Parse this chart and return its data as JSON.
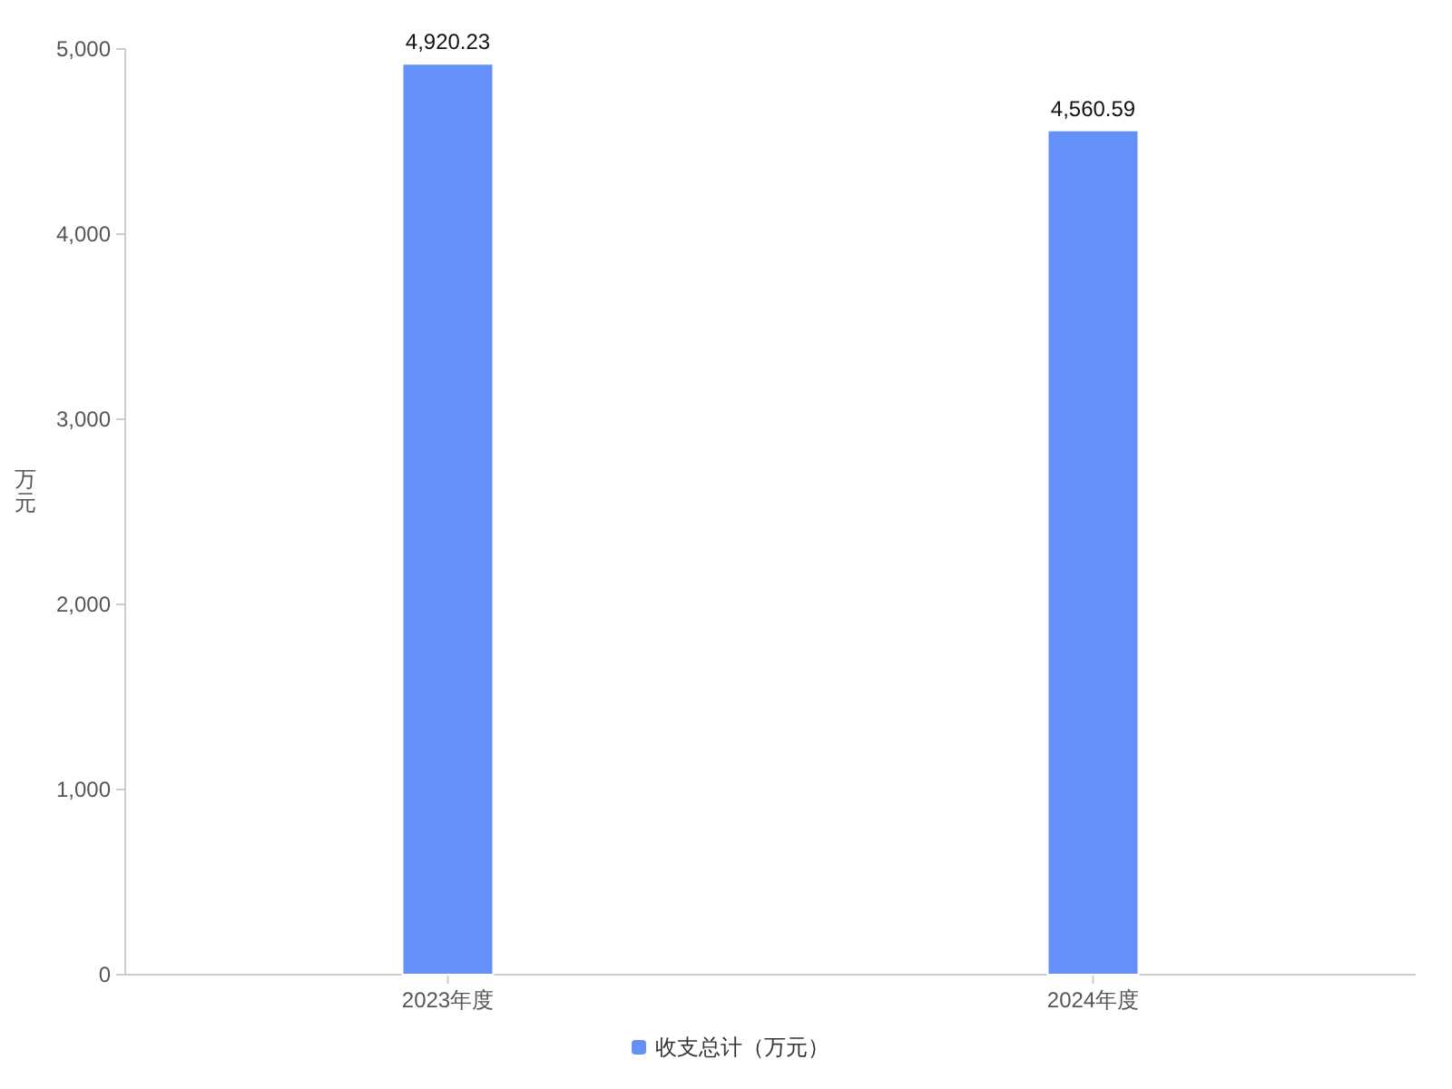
{
  "chart_data": {
    "type": "bar",
    "ylabel": "万元",
    "categories": [
      "2023年度",
      "2024年度"
    ],
    "series": [
      {
        "name": "收支总计（万元）",
        "color": "#6690f9",
        "values": [
          4920.23,
          4560.59
        ],
        "value_labels": [
          "4,920.23",
          "4,560.59"
        ]
      }
    ],
    "ylim": [
      0,
      5000
    ],
    "yticks": [
      0,
      {
        "value": 1000,
        "label": "1,000"
      },
      {
        "value": 2000,
        "label": "2,000"
      },
      {
        "value": 3000,
        "label": "3,000"
      },
      {
        "value": 4000,
        "label": "4,000"
      },
      {
        "value": 5000,
        "label": "5,000"
      }
    ],
    "legend": "bottom",
    "grid": false
  }
}
